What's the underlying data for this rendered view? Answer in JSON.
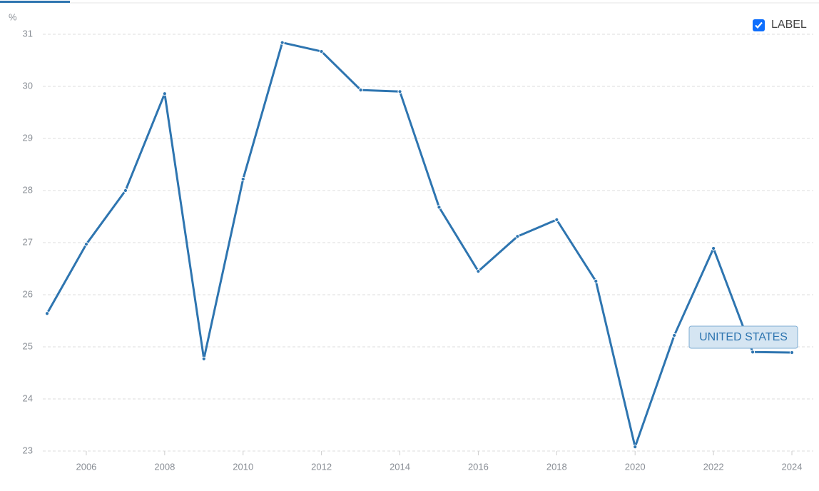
{
  "chart_data": {
    "type": "line",
    "y_unit": "%",
    "checkbox_label": "LABEL",
    "checkbox_checked": true,
    "x": [
      2005,
      2006,
      2007,
      2008,
      2009,
      2010,
      2011,
      2012,
      2013,
      2014,
      2015,
      2016,
      2017,
      2018,
      2019,
      2020,
      2021,
      2022,
      2023,
      2024
    ],
    "series": [
      {
        "name": "UNITED STATES",
        "color": "#2e75b0",
        "values": [
          25.64,
          26.97,
          28.0,
          29.86,
          24.77,
          28.22,
          30.84,
          30.67,
          29.93,
          29.9,
          27.68,
          26.45,
          27.12,
          27.44,
          26.26,
          23.08,
          25.22,
          26.89,
          24.9,
          24.89
        ]
      }
    ],
    "xlim": [
      2005,
      2024
    ],
    "xticks": [
      2006,
      2008,
      2010,
      2012,
      2014,
      2016,
      2018,
      2020,
      2022,
      2024
    ],
    "ylim": [
      23,
      31
    ],
    "yticks": [
      23,
      24,
      25,
      26,
      27,
      28,
      29,
      30,
      31
    ],
    "grid": true
  }
}
